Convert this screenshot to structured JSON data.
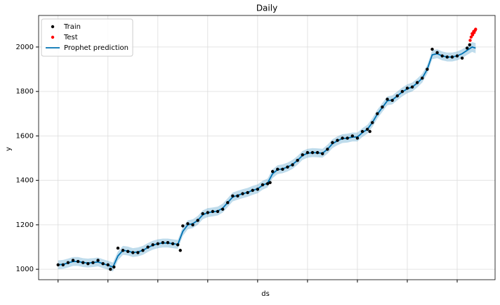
{
  "chart_data": {
    "type": "prophet",
    "title": "Daily",
    "x_label": "ds",
    "y_label": "y",
    "ylim": [
      953,
      2142
    ],
    "yticks": [
      1000,
      1200,
      1400,
      1600,
      1800,
      2000
    ],
    "xlim": [
      -39,
      876
    ],
    "xticks": [
      0,
      100,
      200,
      300,
      400,
      500,
      600,
      700,
      800
    ],
    "xtick_labels": false,
    "grid": true,
    "legend": "upper left",
    "series": [
      {
        "name": "Train",
        "kind": "points",
        "color": "#000000",
        "x": [
          0,
          10,
          20,
          30,
          40,
          50,
          60,
          70,
          80,
          90,
          100,
          105,
          112,
          120,
          130,
          140,
          150,
          160,
          170,
          180,
          190,
          200,
          210,
          220,
          230,
          240,
          245,
          250,
          260,
          270,
          280,
          290,
          300,
          310,
          320,
          330,
          340,
          350,
          360,
          370,
          380,
          390,
          400,
          410,
          420,
          425,
          430,
          440,
          450,
          460,
          470,
          480,
          490,
          500,
          510,
          520,
          530,
          540,
          550,
          560,
          570,
          580,
          590,
          600,
          610,
          620,
          625,
          630,
          640,
          650,
          660,
          670,
          680,
          690,
          700,
          710,
          720,
          730,
          740,
          750,
          760,
          770,
          780,
          790,
          800,
          810,
          820,
          825
        ],
        "values": [
          1020,
          1020,
          1030,
          1040,
          1035,
          1030,
          1025,
          1030,
          1040,
          1025,
          1020,
          1000,
          1010,
          1095,
          1085,
          1080,
          1075,
          1075,
          1085,
          1100,
          1110,
          1115,
          1120,
          1120,
          1115,
          1110,
          1085,
          1195,
          1205,
          1200,
          1220,
          1250,
          1255,
          1260,
          1260,
          1270,
          1300,
          1330,
          1330,
          1340,
          1345,
          1355,
          1360,
          1380,
          1385,
          1390,
          1440,
          1450,
          1450,
          1460,
          1470,
          1490,
          1515,
          1525,
          1525,
          1525,
          1520,
          1540,
          1570,
          1580,
          1590,
          1590,
          1600,
          1590,
          1620,
          1630,
          1620,
          1660,
          1700,
          1730,
          1765,
          1760,
          1780,
          1800,
          1815,
          1820,
          1840,
          1860,
          1900,
          1990,
          1975,
          1960,
          1955,
          1955,
          1960,
          1950,
          1995,
          2010
        ]
      },
      {
        "name": "Test",
        "kind": "points",
        "color": "#ff0000",
        "x": [
          826,
          828,
          830,
          831,
          833,
          834,
          836,
          837
        ],
        "values": [
          2030,
          2045,
          2060,
          2055,
          2070,
          2065,
          2075,
          2080
        ]
      },
      {
        "name": "Prophet prediction",
        "kind": "line",
        "color": "#0072B2",
        "x": [
          0,
          10,
          20,
          30,
          40,
          50,
          60,
          70,
          80,
          90,
          100,
          110,
          120,
          130,
          140,
          150,
          160,
          170,
          180,
          190,
          200,
          210,
          220,
          230,
          240,
          250,
          260,
          270,
          280,
          290,
          300,
          310,
          320,
          330,
          340,
          350,
          360,
          370,
          380,
          390,
          400,
          410,
          420,
          430,
          440,
          450,
          460,
          470,
          480,
          490,
          500,
          510,
          520,
          530,
          540,
          550,
          560,
          570,
          580,
          590,
          600,
          610,
          620,
          630,
          640,
          650,
          660,
          670,
          680,
          690,
          700,
          710,
          720,
          730,
          740,
          750,
          760,
          770,
          780,
          790,
          800,
          810,
          820,
          830,
          837
        ],
        "values": [
          1020,
          1022,
          1028,
          1035,
          1035,
          1030,
          1028,
          1030,
          1033,
          1025,
          1018,
          1010,
          1060,
          1085,
          1082,
          1075,
          1078,
          1085,
          1098,
          1108,
          1115,
          1118,
          1118,
          1115,
          1112,
          1170,
          1200,
          1205,
          1220,
          1245,
          1255,
          1258,
          1262,
          1275,
          1300,
          1325,
          1333,
          1340,
          1346,
          1355,
          1362,
          1378,
          1388,
          1430,
          1448,
          1452,
          1460,
          1472,
          1490,
          1512,
          1522,
          1525,
          1524,
          1522,
          1540,
          1565,
          1578,
          1588,
          1590,
          1595,
          1595,
          1615,
          1630,
          1660,
          1698,
          1728,
          1758,
          1762,
          1780,
          1798,
          1812,
          1820,
          1838,
          1860,
          1900,
          1965,
          1970,
          1960,
          1955,
          1955,
          1960,
          1970,
          1985,
          2000,
          1995
        ],
        "lower": [
          1000,
          1002,
          1008,
          1015,
          1015,
          1010,
          1008,
          1010,
          1013,
          1005,
          998,
          990,
          1040,
          1065,
          1062,
          1055,
          1058,
          1065,
          1078,
          1088,
          1095,
          1098,
          1098,
          1095,
          1092,
          1150,
          1180,
          1185,
          1200,
          1225,
          1235,
          1238,
          1242,
          1255,
          1280,
          1305,
          1313,
          1320,
          1326,
          1335,
          1342,
          1358,
          1368,
          1410,
          1428,
          1432,
          1440,
          1452,
          1470,
          1492,
          1502,
          1505,
          1504,
          1502,
          1520,
          1545,
          1558,
          1568,
          1570,
          1575,
          1575,
          1595,
          1610,
          1640,
          1678,
          1708,
          1738,
          1742,
          1760,
          1778,
          1792,
          1800,
          1818,
          1840,
          1880,
          1945,
          1950,
          1940,
          1935,
          1935,
          1940,
          1950,
          1965,
          1978,
          1972
        ],
        "upper": [
          1040,
          1042,
          1048,
          1055,
          1055,
          1050,
          1048,
          1050,
          1053,
          1045,
          1038,
          1030,
          1080,
          1105,
          1102,
          1095,
          1098,
          1105,
          1118,
          1128,
          1135,
          1138,
          1138,
          1135,
          1132,
          1190,
          1220,
          1225,
          1240,
          1265,
          1275,
          1278,
          1282,
          1295,
          1320,
          1345,
          1353,
          1360,
          1366,
          1375,
          1382,
          1398,
          1408,
          1450,
          1468,
          1472,
          1480,
          1492,
          1510,
          1532,
          1542,
          1545,
          1544,
          1542,
          1560,
          1585,
          1598,
          1608,
          1610,
          1615,
          1615,
          1635,
          1650,
          1680,
          1718,
          1748,
          1778,
          1782,
          1800,
          1818,
          1832,
          1840,
          1858,
          1880,
          1920,
          1985,
          1990,
          1980,
          1975,
          1975,
          1980,
          1990,
          2005,
          2022,
          2018
        ]
      }
    ]
  }
}
